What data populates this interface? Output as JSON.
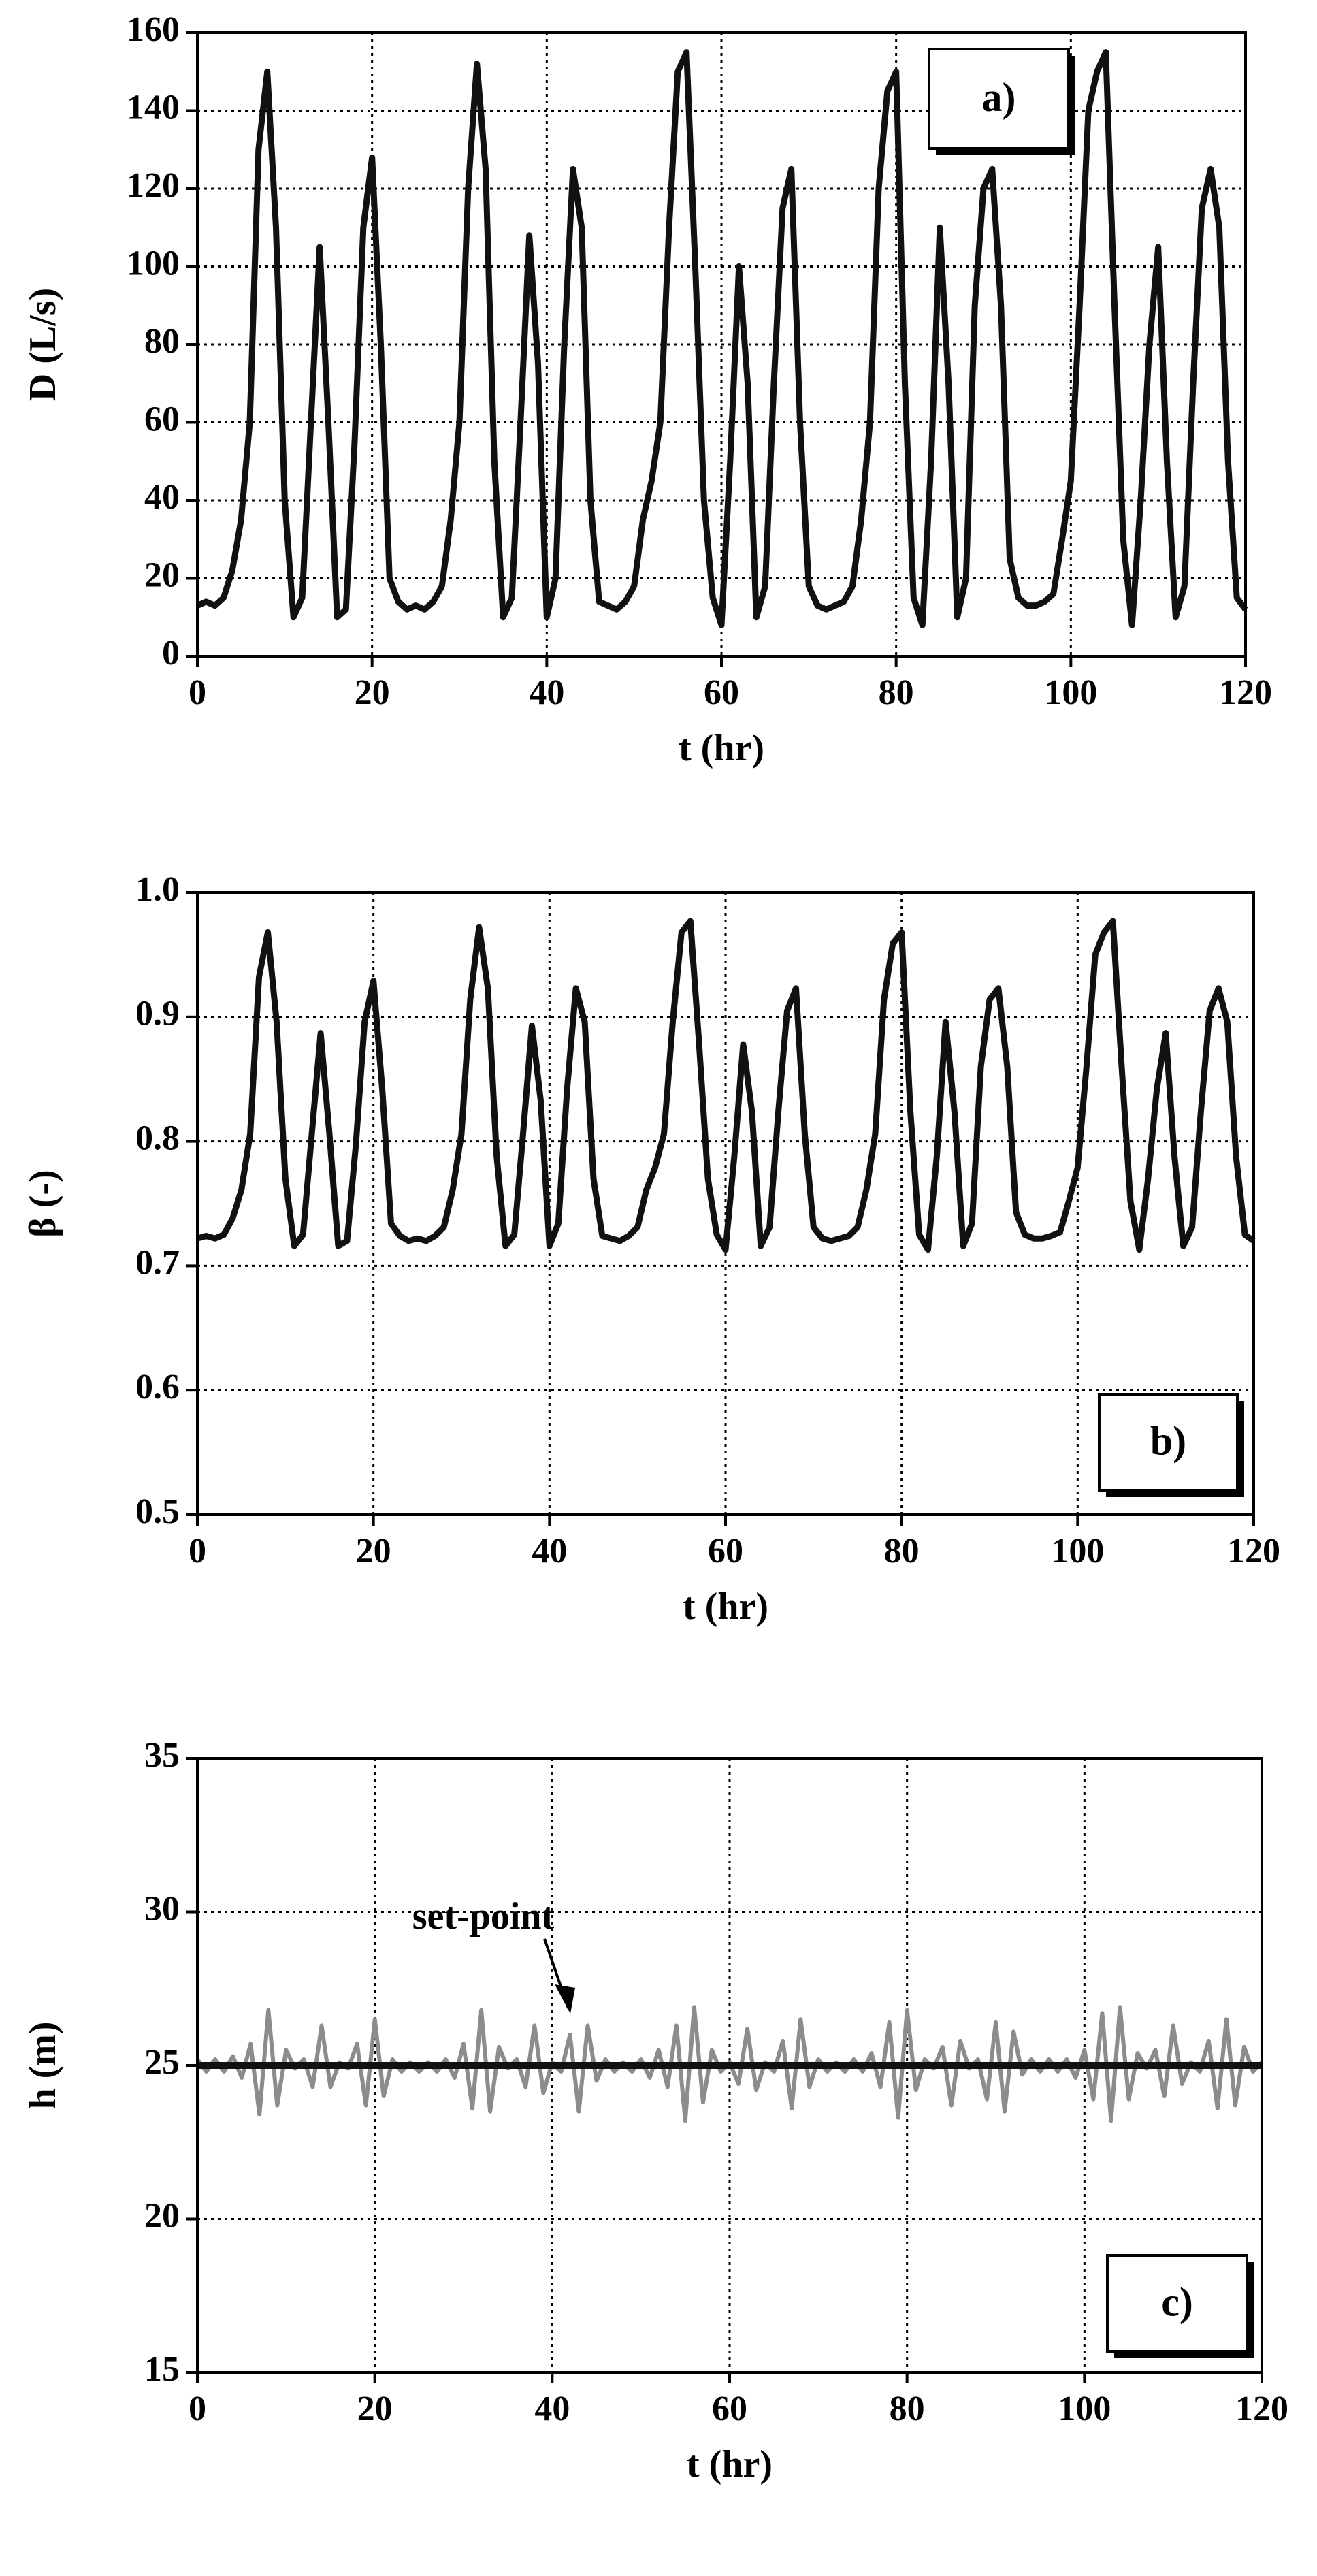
{
  "chart_data": [
    {
      "type": "line",
      "xlabel": "t (hr)",
      "ylabel": "D (L/s)",
      "annotation": "a)",
      "xlim": [
        0,
        120
      ],
      "xticks": [
        0,
        20,
        40,
        60,
        80,
        100,
        120
      ],
      "ylim": [
        0,
        160
      ],
      "yticks": [
        0,
        20,
        40,
        60,
        80,
        100,
        120,
        140,
        160
      ],
      "grid": true,
      "x": [
        0,
        1,
        2,
        3,
        4,
        5,
        6,
        7,
        8,
        9,
        10,
        11,
        12,
        13,
        14,
        15,
        16,
        17,
        18,
        19,
        20,
        21,
        22,
        23,
        24,
        25,
        26,
        27,
        28,
        29,
        30,
        31,
        32,
        33,
        34,
        35,
        36,
        37,
        38,
        39,
        40,
        41,
        42,
        43,
        44,
        45,
        46,
        47,
        48,
        49,
        50,
        51,
        52,
        53,
        54,
        55,
        56,
        57,
        58,
        59,
        60,
        61,
        62,
        63,
        64,
        65,
        66,
        67,
        68,
        69,
        70,
        71,
        72,
        73,
        74,
        75,
        76,
        77,
        78,
        79,
        80,
        81,
        82,
        83,
        84,
        85,
        86,
        87,
        88,
        89,
        90,
        91,
        92,
        93,
        94,
        95,
        96,
        97,
        98,
        99,
        100,
        101,
        102,
        103,
        104,
        105,
        106,
        107,
        108,
        109,
        110,
        111,
        112,
        113,
        114,
        115,
        116,
        117,
        118,
        119,
        120
      ],
      "series": [
        {
          "color": "#111111",
          "values": [
            13,
            14,
            13,
            15,
            22,
            35,
            60,
            130,
            150,
            110,
            40,
            10,
            15,
            60,
            105,
            60,
            10,
            12,
            55,
            110,
            128,
            80,
            20,
            14,
            12,
            13,
            12,
            14,
            18,
            35,
            60,
            120,
            152,
            125,
            50,
            10,
            15,
            60,
            108,
            75,
            10,
            20,
            80,
            125,
            110,
            40,
            14,
            13,
            12,
            14,
            18,
            35,
            45,
            60,
            110,
            150,
            155,
            100,
            40,
            15,
            8,
            50,
            100,
            70,
            10,
            18,
            70,
            115,
            125,
            60,
            18,
            13,
            12,
            13,
            14,
            18,
            35,
            60,
            120,
            145,
            150,
            70,
            15,
            8,
            50,
            110,
            70,
            10,
            20,
            90,
            120,
            125,
            90,
            25,
            15,
            13,
            13,
            14,
            16,
            30,
            45,
            90,
            140,
            150,
            155,
            90,
            30,
            8,
            40,
            80,
            105,
            50,
            10,
            18,
            70,
            115,
            125,
            110,
            50,
            15,
            12
          ]
        }
      ]
    },
    {
      "type": "line",
      "xlabel": "t (hr)",
      "ylabel": "β (-)",
      "annotation": "b)",
      "xlim": [
        0,
        120
      ],
      "xticks": [
        0,
        20,
        40,
        60,
        80,
        100,
        120
      ],
      "ylim": [
        0.5,
        1
      ],
      "yticks": [
        0.5,
        0.6,
        0.7,
        0.8,
        0.9,
        {
          "value": 1,
          "label": "1.0"
        }
      ],
      "grid": true,
      "x": [
        0,
        1,
        2,
        3,
        4,
        5,
        6,
        7,
        8,
        9,
        10,
        11,
        12,
        13,
        14,
        15,
        16,
        17,
        18,
        19,
        20,
        21,
        22,
        23,
        24,
        25,
        26,
        27,
        28,
        29,
        30,
        31,
        32,
        33,
        34,
        35,
        36,
        37,
        38,
        39,
        40,
        41,
        42,
        43,
        44,
        45,
        46,
        47,
        48,
        49,
        50,
        51,
        52,
        53,
        54,
        55,
        56,
        57,
        58,
        59,
        60,
        61,
        62,
        63,
        64,
        65,
        66,
        67,
        68,
        69,
        70,
        71,
        72,
        73,
        74,
        75,
        76,
        77,
        78,
        79,
        80,
        81,
        82,
        83,
        84,
        85,
        86,
        87,
        88,
        89,
        90,
        91,
        92,
        93,
        94,
        95,
        96,
        97,
        98,
        99,
        100,
        101,
        102,
        103,
        104,
        105,
        106,
        107,
        108,
        109,
        110,
        111,
        112,
        113,
        114,
        115,
        116,
        117,
        118,
        119,
        120
      ],
      "series": [
        {
          "color": "#111111",
          "values": [
            0.722,
            0.724,
            0.722,
            0.725,
            0.738,
            0.761,
            0.806,
            0.932,
            0.968,
            0.896,
            0.77,
            0.716,
            0.725,
            0.806,
            0.887,
            0.806,
            0.716,
            0.72,
            0.797,
            0.896,
            0.929,
            0.842,
            0.734,
            0.724,
            0.72,
            0.722,
            0.72,
            0.724,
            0.731,
            0.761,
            0.806,
            0.914,
            0.972,
            0.923,
            0.788,
            0.716,
            0.725,
            0.806,
            0.893,
            0.833,
            0.716,
            0.734,
            0.842,
            0.923,
            0.896,
            0.77,
            0.724,
            0.722,
            0.72,
            0.724,
            0.731,
            0.761,
            0.779,
            0.806,
            0.896,
            0.968,
            0.977,
            0.878,
            0.77,
            0.725,
            0.713,
            0.788,
            0.878,
            0.824,
            0.716,
            0.731,
            0.824,
            0.905,
            0.923,
            0.806,
            0.731,
            0.722,
            0.72,
            0.722,
            0.724,
            0.731,
            0.761,
            0.806,
            0.914,
            0.959,
            0.968,
            0.824,
            0.725,
            0.713,
            0.788,
            0.896,
            0.824,
            0.716,
            0.734,
            0.86,
            0.914,
            0.923,
            0.86,
            0.743,
            0.725,
            0.722,
            0.722,
            0.724,
            0.727,
            0.752,
            0.779,
            0.86,
            0.95,
            0.968,
            0.977,
            0.86,
            0.752,
            0.713,
            0.77,
            0.842,
            0.887,
            0.788,
            0.716,
            0.731,
            0.824,
            0.905,
            0.923,
            0.896,
            0.788,
            0.725,
            0.72
          ]
        }
      ]
    },
    {
      "type": "line",
      "xlabel": "t (hr)",
      "ylabel": "h (m)",
      "annotation": "c)",
      "setpoint_label": "set-point",
      "xlim": [
        0,
        120
      ],
      "xticks": [
        0,
        20,
        40,
        60,
        80,
        100,
        120
      ],
      "ylim": [
        15,
        35
      ],
      "yticks": [
        15,
        20,
        25,
        30,
        35
      ],
      "grid": true,
      "x": [
        0,
        1,
        2,
        3,
        4,
        5,
        6,
        7,
        8,
        9,
        10,
        11,
        12,
        13,
        14,
        15,
        16,
        17,
        18,
        19,
        20,
        21,
        22,
        23,
        24,
        25,
        26,
        27,
        28,
        29,
        30,
        31,
        32,
        33,
        34,
        35,
        36,
        37,
        38,
        39,
        40,
        41,
        42,
        43,
        44,
        45,
        46,
        47,
        48,
        49,
        50,
        51,
        52,
        53,
        54,
        55,
        56,
        57,
        58,
        59,
        60,
        61,
        62,
        63,
        64,
        65,
        66,
        67,
        68,
        69,
        70,
        71,
        72,
        73,
        74,
        75,
        76,
        77,
        78,
        79,
        80,
        81,
        82,
        83,
        84,
        85,
        86,
        87,
        88,
        89,
        90,
        91,
        92,
        93,
        94,
        95,
        96,
        97,
        98,
        99,
        100,
        101,
        102,
        103,
        104,
        105,
        106,
        107,
        108,
        109,
        110,
        111,
        112,
        113,
        114,
        115,
        116,
        117,
        118,
        119,
        120
      ],
      "series": [
        {
          "color": "#8c8c8c",
          "values": [
            25.2,
            24.8,
            25.2,
            24.8,
            25.3,
            24.6,
            25.7,
            23.4,
            26.8,
            23.7,
            25.5,
            24.9,
            25.2,
            24.3,
            26.3,
            24.3,
            25.1,
            24.9,
            25.7,
            23.7,
            26.5,
            24.0,
            25.2,
            24.8,
            25.1,
            24.8,
            25.1,
            24.8,
            25.2,
            24.6,
            25.7,
            23.6,
            26.8,
            23.5,
            25.6,
            24.9,
            25.2,
            24.3,
            26.3,
            24.1,
            25.1,
            24.8,
            26.0,
            23.5,
            26.3,
            24.5,
            25.2,
            24.8,
            25.1,
            24.8,
            25.2,
            24.6,
            25.5,
            24.3,
            26.3,
            23.2,
            26.9,
            23.8,
            25.5,
            24.8,
            25.1,
            24.4,
            26.2,
            24.2,
            25.1,
            24.8,
            25.8,
            23.6,
            26.5,
            24.3,
            25.2,
            24.8,
            25.1,
            24.8,
            25.2,
            24.8,
            25.4,
            24.3,
            26.4,
            23.3,
            26.8,
            24.2,
            25.2,
            24.9,
            25.6,
            23.7,
            25.8,
            24.9,
            25.2,
            23.9,
            26.4,
            23.5,
            26.1,
            24.7,
            25.2,
            24.8,
            25.2,
            24.8,
            25.2,
            24.6,
            25.5,
            23.9,
            26.7,
            23.2,
            26.9,
            23.9,
            25.4,
            24.9,
            25.5,
            24.0,
            26.3,
            24.4,
            25.1,
            24.8,
            25.8,
            23.6,
            26.5,
            23.7,
            25.6,
            24.8,
            25.1
          ]
        }
      ],
      "setpoint": {
        "color": "#111111",
        "x": [
          0,
          120
        ],
        "values": [
          25,
          25
        ]
      }
    }
  ]
}
